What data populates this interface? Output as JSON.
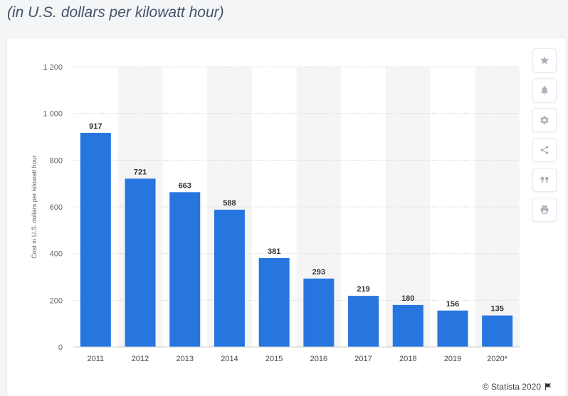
{
  "header": {
    "subtitle": "(in U.S. dollars per kilowatt hour)"
  },
  "toolbar": {
    "buttons": [
      {
        "name": "favorite",
        "icon": "star-icon"
      },
      {
        "name": "notification",
        "icon": "bell-icon"
      },
      {
        "name": "settings",
        "icon": "gear-icon"
      },
      {
        "name": "share",
        "icon": "share-icon"
      },
      {
        "name": "cite",
        "icon": "quote-icon"
      },
      {
        "name": "print",
        "icon": "print-icon"
      }
    ]
  },
  "footer": {
    "credit": "© Statista 2020"
  },
  "colors": {
    "bar": "#2776e0",
    "band": "#f5f5f5",
    "grid": "#cccccc"
  },
  "chart_data": {
    "type": "bar",
    "categories": [
      "2011",
      "2012",
      "2013",
      "2014",
      "2015",
      "2016",
      "2017",
      "2018",
      "2019",
      "2020*"
    ],
    "values": [
      917,
      721,
      663,
      588,
      381,
      293,
      219,
      180,
      156,
      135
    ],
    "data_labels": [
      "917",
      "721",
      "663",
      "588",
      "381",
      "293",
      "219",
      "180",
      "156",
      "135"
    ],
    "ylabel": "Cost in U.S. dollars per kilowatt hour",
    "ylim": [
      0,
      1200
    ],
    "yticks": [
      0,
      200,
      400,
      600,
      800,
      1000,
      1200
    ],
    "ytick_labels": [
      "0",
      "200",
      "400",
      "600",
      "800",
      "1 000",
      "1 200"
    ],
    "grid": true,
    "legend": "none"
  }
}
